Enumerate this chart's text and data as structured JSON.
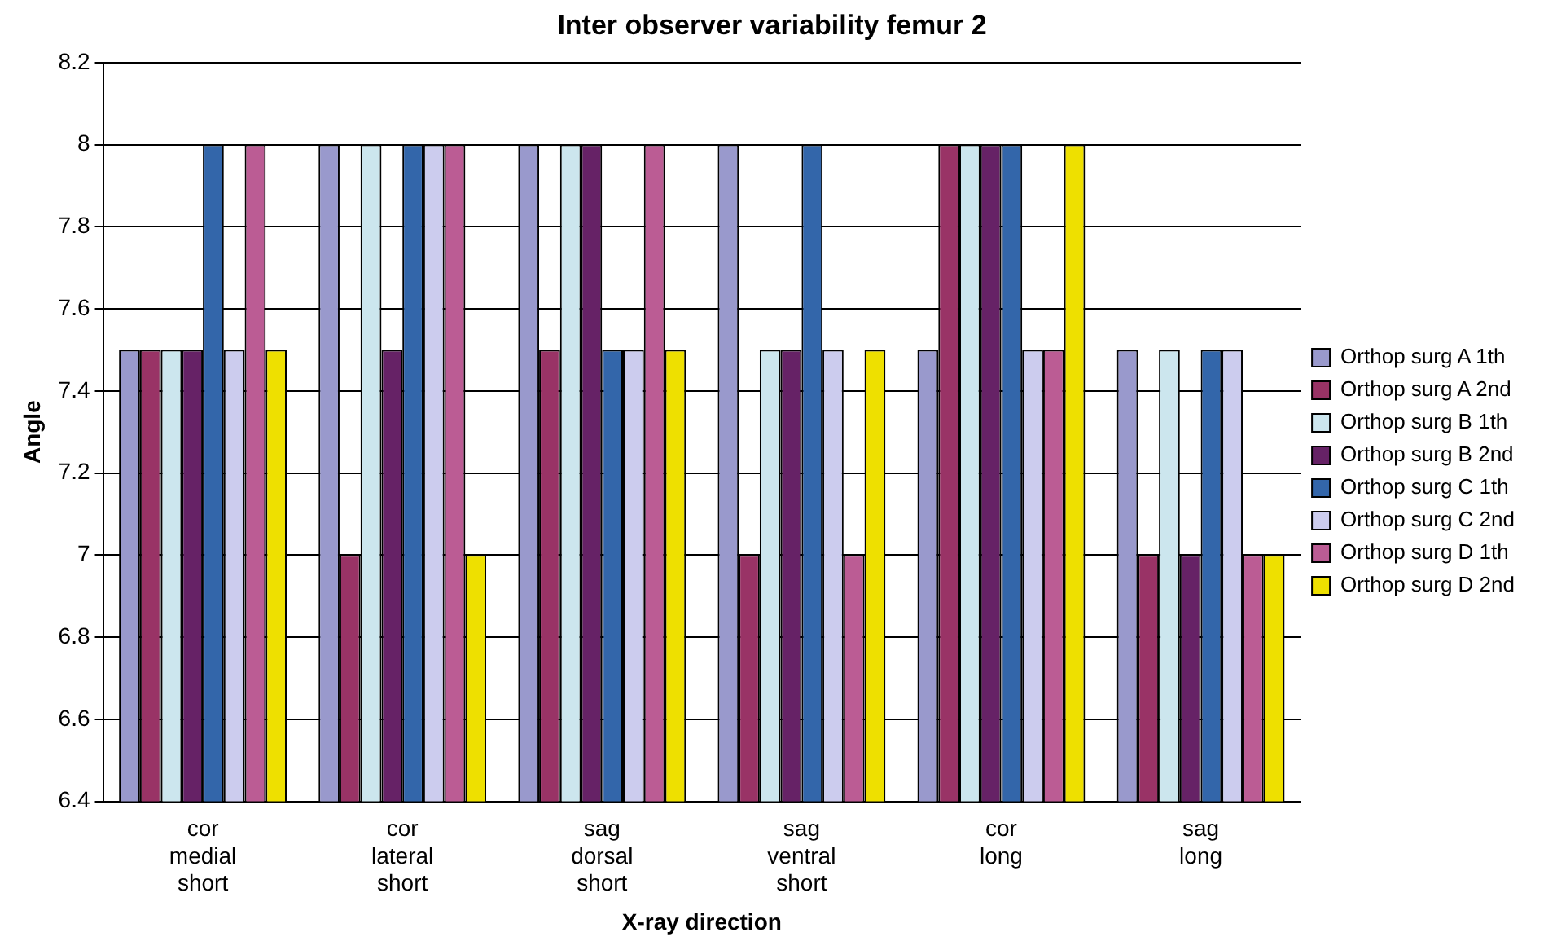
{
  "chart_data": {
    "type": "bar",
    "title": "Inter observer variability femur 2",
    "xlabel": "X-ray direction",
    "ylabel": "Angle",
    "categories": [
      "cor medial short",
      "cor lateral short",
      "sag dorsal short",
      "sag ventral short",
      "cor long",
      "sag long"
    ],
    "series": [
      {
        "name": "Orthop surg A 1th",
        "color": "#9999cc",
        "values": [
          7.5,
          8,
          8,
          8,
          7.5,
          7.5
        ]
      },
      {
        "name": "Orthop surg A 2nd",
        "color": "#993366",
        "values": [
          7.5,
          7,
          7.5,
          7,
          8,
          7
        ]
      },
      {
        "name": "Orthop surg B 1th",
        "color": "#cce6ee",
        "values": [
          7.5,
          8,
          8,
          7.5,
          8,
          7.5
        ]
      },
      {
        "name": "Orthop surg B 2nd",
        "color": "#662266",
        "values": [
          7.5,
          7.5,
          8,
          7.5,
          8,
          7
        ]
      },
      {
        "name": "Orthop surg C 1th",
        "color": "#3366aa",
        "values": [
          8,
          8,
          7.5,
          8,
          8,
          7.5
        ]
      },
      {
        "name": "Orthop surg C 2nd",
        "color": "#ccccee",
        "values": [
          7.5,
          8,
          7.5,
          7.5,
          7.5,
          7.5
        ]
      },
      {
        "name": "Orthop surg D 1th",
        "color": "#bb5c94",
        "values": [
          8,
          8,
          8,
          7,
          7.5,
          7
        ]
      },
      {
        "name": "Orthop surg D 2nd",
        "color": "#eee000",
        "values": [
          7.5,
          7,
          7.5,
          7.5,
          8,
          7
        ]
      }
    ],
    "ylim": [
      6.4,
      8.2
    ],
    "yticks": [
      6.4,
      6.6,
      6.8,
      7,
      7.2,
      7.4,
      7.6,
      7.8,
      8,
      8.2
    ],
    "grid": "y",
    "legend": "right"
  }
}
